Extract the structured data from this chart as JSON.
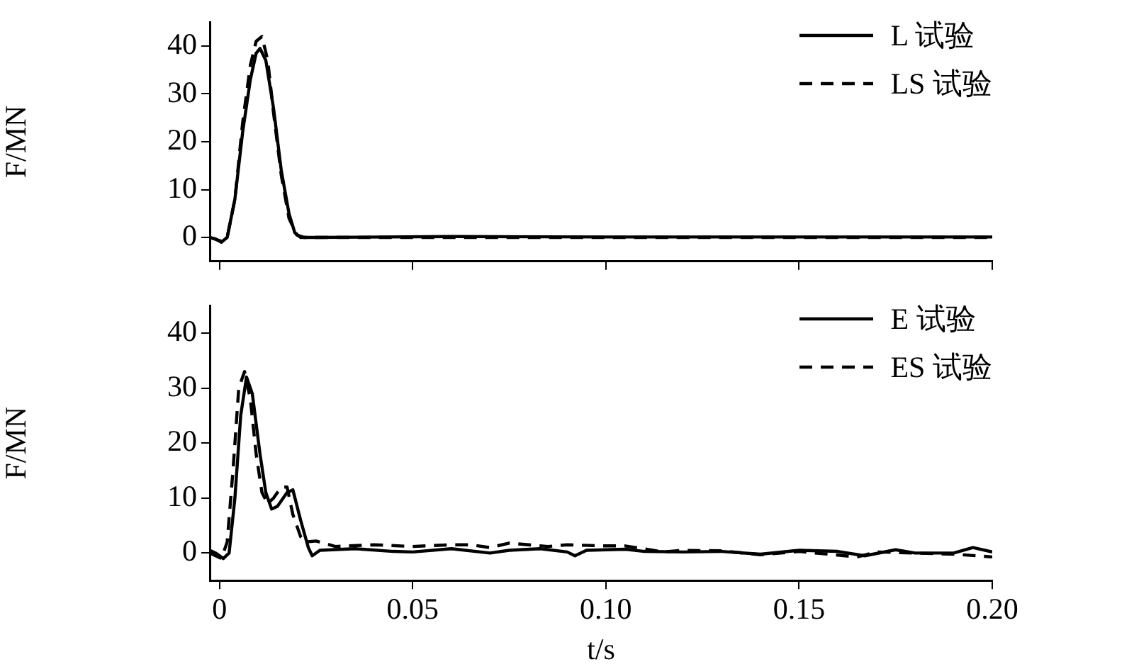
{
  "chart_data": [
    {
      "type": "line",
      "ylabel": "F/MN",
      "xlim": [
        -0.0025,
        0.2
      ],
      "xticks": [
        0,
        0.05,
        0.1,
        0.15,
        0.2
      ],
      "ylim": [
        -5,
        45
      ],
      "yticks": [
        0,
        10,
        20,
        30,
        40
      ],
      "tick_labels": "y",
      "legend": "top right",
      "grid": false,
      "marker": "none",
      "series": [
        {
          "name": "L 试验",
          "color": "#000000",
          "line_style": "solid",
          "x": [
            -0.0025,
            -0.001,
            0.0005,
            0.002,
            0.004,
            0.006,
            0.008,
            0.0095,
            0.0105,
            0.012,
            0.014,
            0.016,
            0.018,
            0.0195,
            0.021,
            0.025,
            0.06,
            0.1,
            0.15,
            0.2
          ],
          "values": [
            0,
            -0.3,
            -1,
            0,
            8,
            22,
            33,
            38.5,
            39.5,
            37,
            27,
            14,
            5,
            1,
            0,
            0,
            0.2,
            0.1,
            0.1,
            0.1
          ]
        },
        {
          "name": "LS 试验",
          "color": "#000000",
          "line_style": "dashed",
          "x": [
            -0.0025,
            0.0005,
            0.002,
            0.004,
            0.006,
            0.008,
            0.0095,
            0.011,
            0.0125,
            0.014,
            0.016,
            0.018,
            0.02,
            0.022,
            0.2
          ],
          "values": [
            0,
            -0.8,
            0,
            8,
            24,
            36,
            41,
            42,
            37,
            26,
            13,
            4,
            0.5,
            0,
            0
          ]
        }
      ]
    },
    {
      "type": "line",
      "xlabel": "t/s",
      "ylabel": "F/MN",
      "xlim": [
        -0.0025,
        0.2
      ],
      "xticks": [
        0,
        {
          "value": 0.05,
          "label": "0.05"
        },
        {
          "value": 0.1,
          "label": "0.10"
        },
        {
          "value": 0.15,
          "label": "0.15"
        },
        {
          "value": 0.2,
          "label": "0.20"
        }
      ],
      "ylim": [
        -5,
        45
      ],
      "yticks": [
        0,
        10,
        20,
        30,
        40
      ],
      "legend": "top right",
      "grid": false,
      "marker": "none",
      "series": [
        {
          "name": "E 试验",
          "color": "#000000",
          "line_style": "solid",
          "x": [
            -0.0025,
            -0.001,
            0.001,
            0.0025,
            0.004,
            0.0055,
            0.007,
            0.0085,
            0.0105,
            0.012,
            0.0135,
            0.015,
            0.0175,
            0.019,
            0.021,
            0.023,
            0.024,
            0.026,
            0.035,
            0.045,
            0.05,
            0.06,
            0.07,
            0.075,
            0.083,
            0.09,
            0.092,
            0.095,
            0.105,
            0.11,
            0.12,
            0.13,
            0.14,
            0.15,
            0.16,
            0.167,
            0.175,
            0.18,
            0.19,
            0.195,
            0.2
          ],
          "values": [
            0.5,
            0,
            -1,
            0,
            10,
            25,
            32,
            29,
            18,
            11,
            8,
            8.5,
            11,
            11.5,
            6,
            1,
            -0.5,
            0.5,
            0.8,
            0.3,
            0.2,
            0.8,
            0,
            0.5,
            0.8,
            0.2,
            -0.5,
            0.5,
            0.7,
            0.3,
            0.2,
            0.3,
            -0.2,
            0.5,
            0.3,
            -0.5,
            0.6,
            0,
            0,
            1,
            0.2
          ]
        },
        {
          "name": "ES 试验",
          "color": "#000000",
          "line_style": "dashed",
          "x": [
            -0.0025,
            0.0005,
            0.002,
            0.0035,
            0.005,
            0.0065,
            0.008,
            0.0095,
            0.011,
            0.0125,
            0.014,
            0.016,
            0.0175,
            0.019,
            0.021,
            0.022,
            0.025,
            0.03,
            0.04,
            0.05,
            0.06,
            0.065,
            0.07,
            0.075,
            0.085,
            0.09,
            0.1,
            0.105,
            0.115,
            0.12,
            0.13,
            0.14,
            0.15,
            0.165,
            0.17,
            0.18,
            0.19,
            0.2
          ],
          "values": [
            0,
            -1,
            2,
            15,
            30,
            33,
            28,
            18,
            11,
            9,
            10,
            12,
            12,
            7,
            3,
            2,
            2.2,
            1.2,
            1.5,
            1.2,
            1.5,
            1.5,
            1,
            1.8,
            1.2,
            1.5,
            1.3,
            1.3,
            0.2,
            0.5,
            0.4,
            -0.3,
            0.3,
            -0.7,
            0.2,
            0,
            -0.2,
            -0.7
          ]
        }
      ]
    }
  ]
}
